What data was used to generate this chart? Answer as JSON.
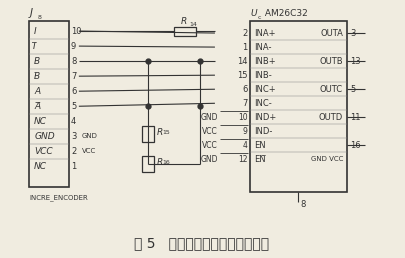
{
  "title": "图 5   增量式编码器信号处理电路",
  "title_fontsize": 10,
  "bg_color": "#f0ece0",
  "line_color": "#333333",
  "j8_label_italic": "J",
  "j8_label_sub": "8",
  "pin_labels_left": [
    "I",
    "I",
    "B",
    "B",
    "A",
    "A",
    "NC",
    "GND",
    "VCC",
    "NC"
  ],
  "pin_labels_overline": [
    false,
    true,
    false,
    true,
    false,
    true,
    false,
    false,
    false,
    false
  ],
  "pin_nums_right": [
    "10",
    "9",
    "8",
    "7",
    "6",
    "5",
    "4",
    "3",
    "2",
    "1"
  ],
  "ic_label_italic": "U",
  "ic_label_sub": "c",
  "ic_label_rest": " AM26C32",
  "ic_left_labels": [
    "INA+",
    "INA-",
    "INB+",
    "INB-",
    "INC+",
    "INC-",
    "IND+",
    "IND-",
    "EN",
    "EN"
  ],
  "ic_left_overline": [
    false,
    false,
    false,
    false,
    false,
    false,
    false,
    false,
    false,
    true
  ],
  "ic_left_nums": [
    "2",
    "1",
    "14",
    "15",
    "6",
    "7",
    "10",
    "9",
    "4",
    "12"
  ],
  "ic_power_labels": [
    "GND",
    "VCC",
    "VCC",
    "GND"
  ],
  "ic_power_nums": [
    "10",
    "9",
    "4",
    "12"
  ],
  "ic_right_labels": [
    "OUTA",
    "OUTB",
    "OUTC",
    "OUTD"
  ],
  "ic_right_nums": [
    "3",
    "13",
    "5",
    "11"
  ],
  "ic_pin16": "16",
  "ic_bottom_label": "GND VCC",
  "ic_bottom_pin": "8",
  "R14_label": "R",
  "R14_sub": "14",
  "R15_label": "R",
  "R15_sub": "15",
  "R16_label": "R",
  "R16_sub": "16",
  "incre_label": "INCRE_ENCODER",
  "j8_gnd_label": "GND",
  "j8_vcc_label": "VCC"
}
